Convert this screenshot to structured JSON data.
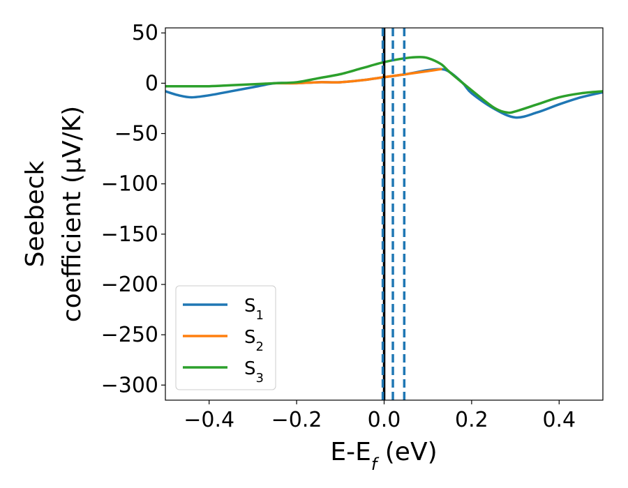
{
  "chart_data": {
    "type": "line",
    "xlabel": {
      "main": "E-E",
      "sub": "f",
      "unit": " (eV)"
    },
    "ylabel": {
      "line1": "Seebeck",
      "line2": "coefficient  (μV/K)"
    },
    "xlim": [
      -0.5,
      0.5
    ],
    "ylim": [
      -315,
      55
    ],
    "xticks": [
      -0.4,
      -0.2,
      0.0,
      0.2,
      0.4
    ],
    "xtick_labels": [
      "−0.4",
      "−0.2",
      "0.0",
      "0.2",
      "0.4"
    ],
    "yticks": [
      50,
      0,
      -50,
      -100,
      -150,
      -200,
      -250,
      -300
    ],
    "ytick_labels": [
      "50",
      "0",
      "−50",
      "−100",
      "−150",
      "−200",
      "−250",
      "−300"
    ],
    "grid": false,
    "legend_position": "lower-left",
    "series": [
      {
        "name": "S",
        "sub": "1",
        "color": "#1f77b4",
        "x": [
          -0.5,
          -0.47,
          -0.44,
          -0.4,
          -0.35,
          -0.3,
          -0.25,
          -0.2,
          -0.15,
          -0.1,
          -0.05,
          0.0,
          0.05,
          0.1,
          0.13,
          0.15,
          0.18,
          0.2,
          0.25,
          0.3,
          0.35,
          0.4,
          0.45,
          0.5
        ],
        "y": [
          -8,
          -12,
          -14,
          -12,
          -8,
          -4,
          0,
          0,
          1,
          1,
          3,
          6,
          9,
          13,
          14,
          11,
          0,
          -10,
          -25,
          -34,
          -29,
          -21,
          -14,
          -9
        ]
      },
      {
        "name": "S",
        "sub": "2",
        "color": "#ff7f0e",
        "x": [
          -0.25,
          -0.2,
          -0.15,
          -0.1,
          -0.05,
          0.0,
          0.05,
          0.1,
          0.13
        ],
        "y": [
          0,
          0,
          1,
          1,
          3,
          6,
          9,
          12,
          14
        ]
      },
      {
        "name": "S",
        "sub": "3",
        "color": "#2ca02c",
        "x": [
          -0.5,
          -0.45,
          -0.4,
          -0.35,
          -0.3,
          -0.25,
          -0.2,
          -0.15,
          -0.1,
          -0.05,
          0.0,
          0.05,
          0.08,
          0.1,
          0.13,
          0.15,
          0.2,
          0.25,
          0.28,
          0.3,
          0.35,
          0.4,
          0.45,
          0.5
        ],
        "y": [
          -3,
          -3,
          -3,
          -2,
          -1,
          0,
          1,
          5,
          9,
          15,
          21,
          25,
          26,
          25,
          19,
          11,
          -7,
          -24,
          -29,
          -28,
          -21,
          -14,
          -10,
          -8
        ]
      }
    ],
    "vlines": [
      {
        "x": 0.0,
        "style": "solid",
        "color": "#000000"
      },
      {
        "x": -0.003,
        "style": "dashed",
        "color": "#1f77b4"
      },
      {
        "x": 0.02,
        "style": "dashed",
        "color": "#1f77b4"
      },
      {
        "x": 0.046,
        "style": "dashed",
        "color": "#1f77b4"
      }
    ]
  }
}
